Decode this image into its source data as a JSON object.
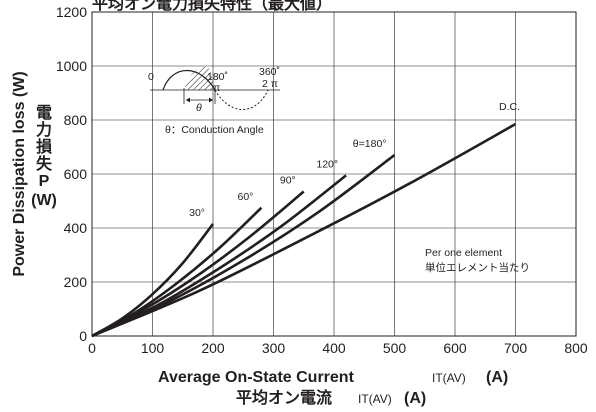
{
  "chart_data": {
    "type": "line",
    "title": "平均オン電力損失特性（最大値）",
    "xlabel": "Average On-State Current",
    "xlabel_symbol": "IT(AV)",
    "xlabel_unit": "(A)",
    "xlabel_jp": "平均オン電流",
    "ylabel": "Power Dissipation loss (W)",
    "ylabel_jp": [
      "電",
      "力",
      "損",
      "失",
      "P",
      "(W)"
    ],
    "xlim": [
      0,
      800
    ],
    "ylim": [
      0,
      1200
    ],
    "xticks": [
      0,
      100,
      200,
      300,
      400,
      500,
      600,
      700,
      800
    ],
    "yticks": [
      0,
      200,
      400,
      600,
      800,
      1000,
      1200
    ],
    "grid": true,
    "series": [
      {
        "name": "30°",
        "x": [
          0,
          50,
          100,
          150,
          200
        ],
        "y": [
          0,
          65,
          155,
          270,
          415
        ]
      },
      {
        "name": "60°",
        "x": [
          0,
          70,
          140,
          210,
          280
        ],
        "y": [
          0,
          85,
          195,
          325,
          475
        ]
      },
      {
        "name": "90°",
        "x": [
          0,
          87,
          175,
          262,
          350
        ],
        "y": [
          0,
          100,
          225,
          370,
          535
        ]
      },
      {
        "name": "120°",
        "x": [
          0,
          105,
          210,
          315,
          420
        ],
        "y": [
          0,
          110,
          250,
          410,
          595
        ]
      },
      {
        "name": "θ=180°",
        "x": [
          0,
          125,
          250,
          375,
          500
        ],
        "y": [
          0,
          125,
          280,
          460,
          670
        ]
      },
      {
        "name": "D.C.",
        "x": [
          0,
          175,
          350,
          525,
          700
        ],
        "y": [
          0,
          165,
          360,
          565,
          785
        ]
      }
    ],
    "annotations": {
      "dc_label": "D.C.",
      "element_note_en": "Per one element",
      "element_note_jp": "単位エレメント当たり",
      "waveform_start": "0",
      "waveform_180_deg": "180˚",
      "waveform_180_rad": "π",
      "waveform_360_deg": "360˚",
      "waveform_360_rad": "2 π",
      "waveform_theta": "θ",
      "conduction_angle": "θ：Conduction Angle"
    }
  }
}
